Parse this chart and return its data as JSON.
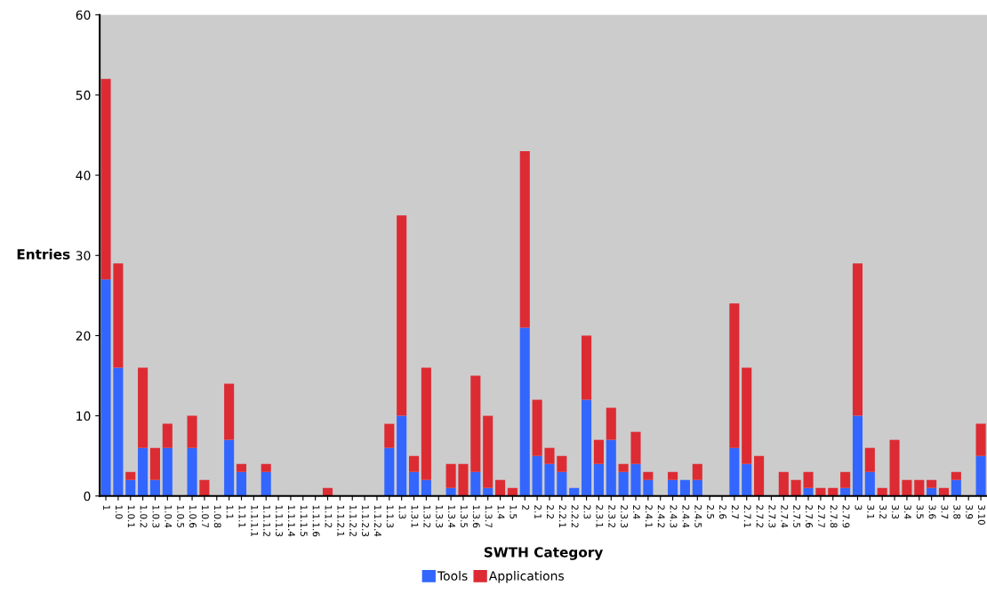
{
  "chart_data": {
    "type": "bar",
    "stacked": true,
    "xlabel": "SWTH Category",
    "ylabel": "Entries",
    "ylim": [
      0,
      60
    ],
    "yticks": [
      0,
      10,
      20,
      30,
      40,
      50,
      60
    ],
    "grid": false,
    "legend": "bottom",
    "categories": [
      "1",
      "1.0",
      "1.0.1",
      "1.0.2",
      "1.0.3",
      "1.0.4",
      "1.0.5",
      "1.0.6",
      "1.0.7",
      "1.0.8",
      "1.1",
      "1.1.1",
      "1.1.1.1",
      "1.1.1.2",
      "1.1.1.3",
      "1.1.1.4",
      "1.1.1.5",
      "1.1.1.6",
      "1.1.2",
      "1.1.2.1",
      "1.1.2.2",
      "1.1.2.3",
      "1.1.2.4",
      "1.1.3",
      "1.3",
      "1.3.1",
      "1.3.2",
      "1.3.3",
      "1.3.4",
      "1.3.5",
      "1.3.6",
      "1.3.7",
      "1.4",
      "1.5",
      "2",
      "2.1",
      "2.2",
      "2.2.1",
      "2.2.2",
      "2.3",
      "2.3.1",
      "2.3.2",
      "2.3.3",
      "2.4",
      "2.4.1",
      "2.4.2",
      "2.4.3",
      "2.4.4",
      "2.4.5",
      "2.5",
      "2.6",
      "2.7",
      "2.7.1",
      "2.7.2",
      "2.7.3",
      "2.7.4",
      "2.7.5",
      "2.7.6",
      "2.7.7",
      "2.7.8",
      "2.7.9",
      "3",
      "3.1",
      "3.2",
      "3.3",
      "3.4",
      "3.5",
      "3.6",
      "3.7",
      "3.8",
      "3.9",
      "3.10"
    ],
    "series": [
      {
        "name": "Tools",
        "color": "#3366ff",
        "values": [
          27,
          16,
          2,
          6,
          2,
          6,
          0,
          6,
          0,
          0,
          7,
          3,
          0,
          3,
          0,
          0,
          0,
          0,
          0,
          0,
          0,
          0,
          0,
          6,
          10,
          3,
          2,
          0,
          1,
          0,
          3,
          1,
          0,
          0,
          21,
          5,
          4,
          3,
          1,
          12,
          4,
          7,
          3,
          4,
          2,
          0,
          2,
          2,
          2,
          0,
          0,
          6,
          4,
          0,
          0,
          0,
          0,
          1,
          0,
          0,
          1,
          10,
          3,
          0,
          0,
          0,
          0,
          1,
          0,
          2,
          0,
          5
        ]
      },
      {
        "name": "Applications",
        "color": "#dd2b33",
        "values": [
          25,
          13,
          1,
          10,
          4,
          3,
          0,
          4,
          2,
          0,
          7,
          1,
          0,
          1,
          0,
          0,
          0,
          0,
          1,
          0,
          0,
          0,
          0,
          3,
          25,
          2,
          14,
          0,
          3,
          4,
          12,
          9,
          2,
          1,
          22,
          7,
          2,
          2,
          0,
          8,
          3,
          4,
          1,
          4,
          1,
          0,
          1,
          0,
          2,
          0,
          0,
          18,
          12,
          5,
          0,
          3,
          2,
          2,
          1,
          1,
          2,
          19,
          3,
          1,
          7,
          2,
          2,
          1,
          1,
          1,
          0,
          4
        ]
      }
    ]
  }
}
